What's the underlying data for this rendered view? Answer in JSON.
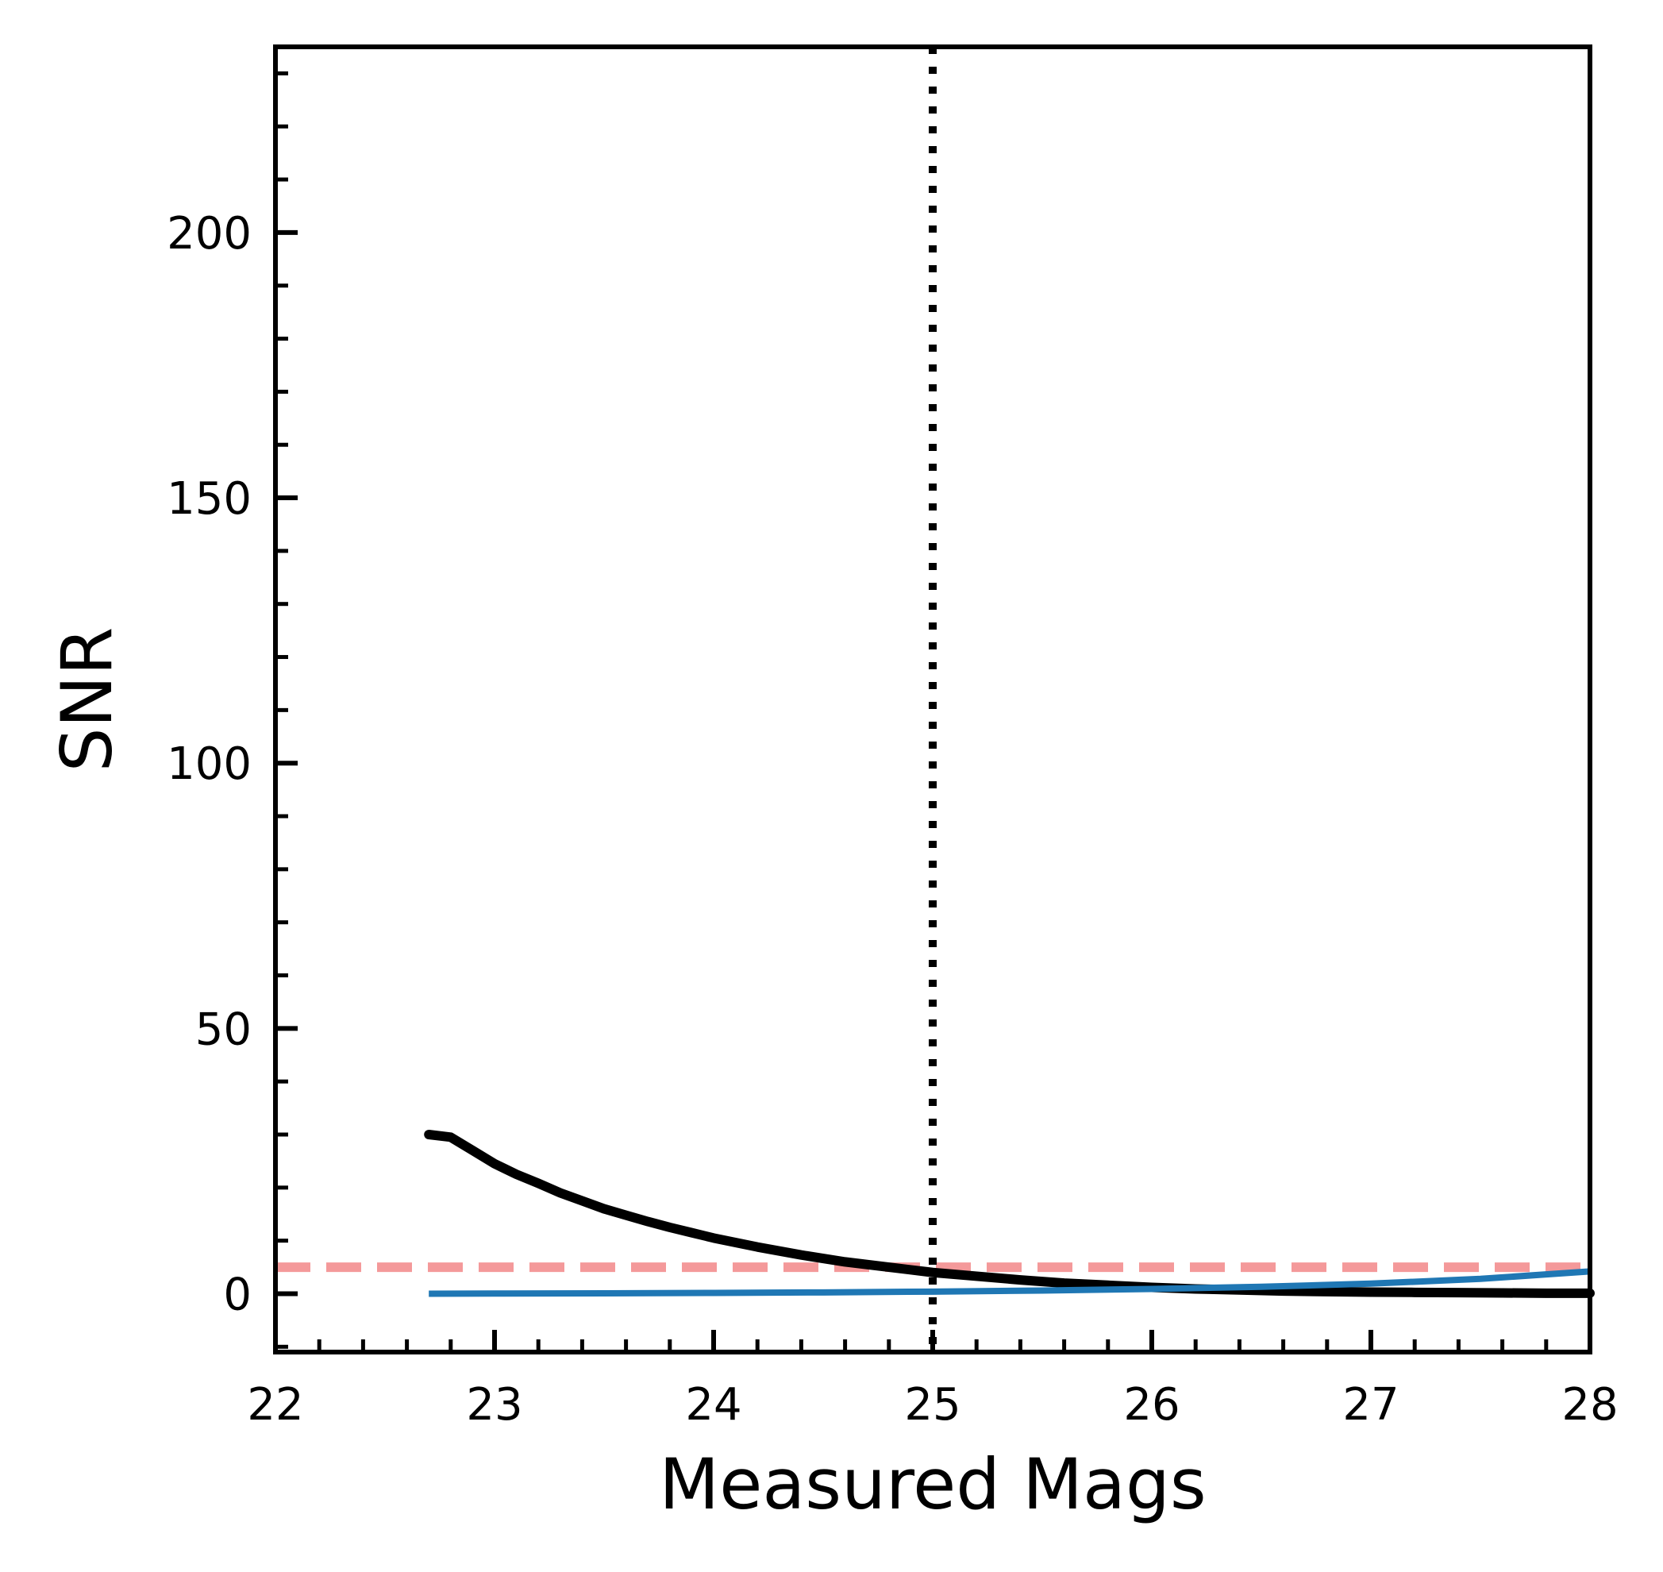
{
  "chart_data": {
    "type": "scatter",
    "title": "",
    "xlabel": "Measured Mags",
    "ylabel": "SNR",
    "xlim": [
      22,
      28
    ],
    "ylim": [
      -11,
      235
    ],
    "grid": false,
    "xticks": [
      "22",
      "23",
      "24",
      "25",
      "26",
      "27",
      "28"
    ],
    "yticks": [
      "0",
      "50",
      "100",
      "150",
      "200"
    ],
    "series": [
      {
        "kind": "scatter",
        "color": "#000000",
        "x": [
          22.7,
          22.8,
          22.9,
          23.0,
          23.1,
          23.2,
          23.3,
          23.4,
          23.5,
          23.6,
          23.7,
          23.8,
          23.9,
          24.0,
          24.2,
          24.4,
          24.6,
          24.8,
          25.0,
          25.2,
          25.4,
          25.6,
          25.8,
          26.0,
          26.2,
          26.4,
          26.6,
          26.8,
          27.0,
          27.2,
          27.4,
          27.6,
          27.8,
          28.0
        ],
        "y": [
          30.0,
          29.5,
          27.0,
          24.5,
          22.5,
          20.8,
          19.0,
          17.5,
          16.0,
          14.8,
          13.6,
          12.5,
          11.5,
          10.5,
          8.8,
          7.3,
          6.0,
          5.0,
          4.0,
          3.3,
          2.6,
          2.0,
          1.6,
          1.2,
          0.9,
          0.7,
          0.5,
          0.4,
          0.3,
          0.25,
          0.2,
          0.15,
          0.1,
          0.1
        ]
      },
      {
        "kind": "line",
        "color": "#1f77b4",
        "x": [
          22.7,
          23.0,
          23.5,
          24.0,
          24.5,
          25.0,
          25.5,
          26.0,
          26.5,
          27.0,
          27.5,
          28.0
        ],
        "y": [
          0.0,
          0.03,
          0.08,
          0.15,
          0.25,
          0.4,
          0.6,
          0.9,
          1.3,
          1.9,
          2.8,
          4.2
        ]
      }
    ],
    "reference_lines": [
      {
        "orientation": "horizontal",
        "value": 5,
        "color": "#f4999a",
        "style": "dashed"
      },
      {
        "orientation": "vertical",
        "value": 25,
        "color": "#000000",
        "style": "dotted"
      }
    ]
  }
}
